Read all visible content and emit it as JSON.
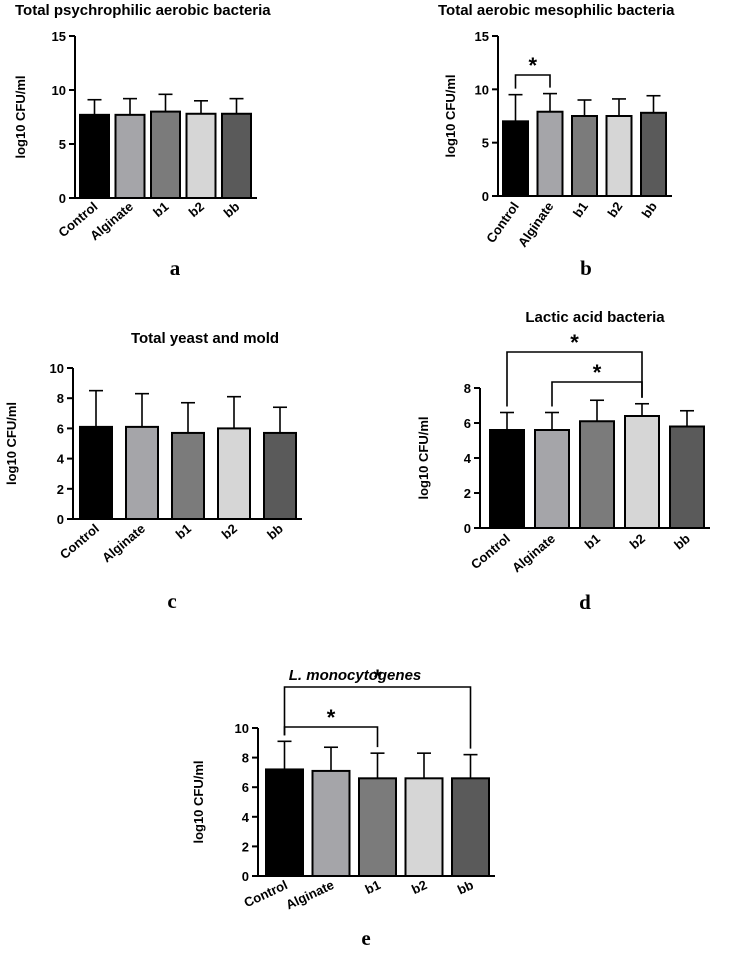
{
  "chart_data": [
    {
      "type": "bar",
      "panel_label": "a",
      "title": "Total psychrophilic aerobic bacteria",
      "ylabel": "log10 CFU/ml",
      "categories": [
        "Control",
        "Alginate",
        "b1",
        "b2",
        "bb"
      ],
      "values": [
        7.7,
        7.7,
        8.0,
        7.8,
        7.8
      ],
      "errors": [
        1.4,
        1.5,
        1.6,
        1.2,
        1.4
      ],
      "bar_colors": [
        "#000000",
        "#a5a5a9",
        "#7b7b7b",
        "#d6d6d6",
        "#5a5a5a"
      ],
      "ylim": [
        0,
        15
      ],
      "yticks": [
        "0",
        "5",
        "10",
        "15"
      ],
      "significance": [],
      "grid": false
    },
    {
      "type": "bar",
      "panel_label": "b",
      "title": "Total aerobic mesophilic bacteria",
      "ylabel": "log10 CFU/ml",
      "categories": [
        "Control",
        "Alginate",
        "b1",
        "b2",
        "bb"
      ],
      "values": [
        7.0,
        7.9,
        7.5,
        7.5,
        7.8
      ],
      "errors": [
        2.5,
        1.7,
        1.5,
        1.6,
        1.6
      ],
      "bar_colors": [
        "#000000",
        "#a5a5a9",
        "#7b7b7b",
        "#d6d6d6",
        "#5a5a5a"
      ],
      "ylim": [
        0,
        15
      ],
      "yticks": [
        "0",
        "5",
        "10",
        "15"
      ],
      "significance": [
        {
          "from": 0,
          "to": 1,
          "label": "*"
        }
      ],
      "grid": false
    },
    {
      "type": "bar",
      "panel_label": "c",
      "title": "Total yeast and mold",
      "ylabel": "log10 CFU/ml",
      "categories": [
        "Control",
        "Alginate",
        "b1",
        "b2",
        "bb"
      ],
      "values": [
        6.1,
        6.1,
        5.7,
        6.0,
        5.7
      ],
      "errors": [
        2.4,
        2.2,
        2.0,
        2.1,
        1.7
      ],
      "bar_colors": [
        "#000000",
        "#a5a5a9",
        "#7b7b7b",
        "#d6d6d6",
        "#5a5a5a"
      ],
      "ylim": [
        0,
        10
      ],
      "yticks": [
        "0",
        "2",
        "4",
        "6",
        "8",
        "10"
      ],
      "significance": [],
      "grid": false
    },
    {
      "type": "bar",
      "panel_label": "d",
      "title": "Lactic acid bacteria",
      "ylabel": "log10 CFU/ml",
      "categories": [
        "Control",
        "Alginate",
        "b1",
        "b2",
        "bb"
      ],
      "values": [
        5.6,
        5.6,
        6.1,
        6.4,
        5.8
      ],
      "errors": [
        1.0,
        1.0,
        1.2,
        0.7,
        0.9
      ],
      "bar_colors": [
        "#000000",
        "#a5a5a9",
        "#7b7b7b",
        "#d6d6d6",
        "#5a5a5a"
      ],
      "ylim": [
        0,
        8
      ],
      "yticks": [
        "0",
        "2",
        "4",
        "6",
        "8"
      ],
      "significance": [
        {
          "from": 0,
          "to": 3,
          "label": "*"
        },
        {
          "from": 1,
          "to": 3,
          "label": "*"
        }
      ],
      "grid": false
    },
    {
      "type": "bar",
      "panel_label": "e",
      "title": "L. monocytogenes",
      "title_italic": true,
      "ylabel": "log10 CFU/ml",
      "categories": [
        "Control",
        "Alginate",
        "b1",
        "b2",
        "bb"
      ],
      "values": [
        7.2,
        7.1,
        6.6,
        6.6,
        6.6
      ],
      "errors": [
        1.9,
        1.6,
        1.7,
        1.7,
        1.6
      ],
      "bar_colors": [
        "#000000",
        "#a5a5a9",
        "#7b7b7b",
        "#d6d6d6",
        "#5a5a5a"
      ],
      "ylim": [
        0,
        10
      ],
      "yticks": [
        "0",
        "2",
        "4",
        "6",
        "8",
        "10"
      ],
      "significance": [
        {
          "from": 0,
          "to": 4,
          "label": "*"
        },
        {
          "from": 0,
          "to": 2,
          "label": "*"
        }
      ],
      "grid": false
    }
  ]
}
